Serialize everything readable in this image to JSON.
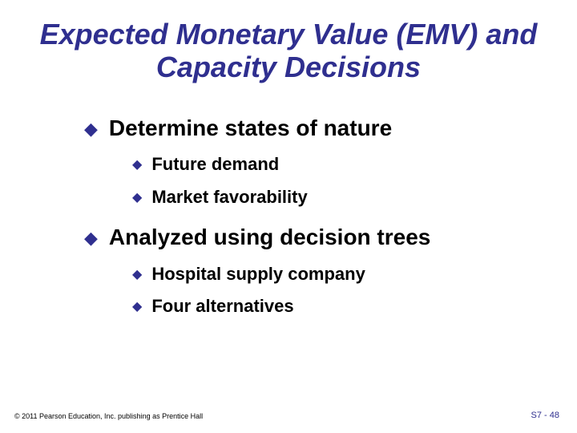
{
  "colors": {
    "accent": "#2f2f8f",
    "text": "#000000",
    "background": "#ffffff"
  },
  "title": "Expected Monetary Value (EMV) and Capacity Decisions",
  "bullets": {
    "b1": "Determine states of nature",
    "b1a": "Future demand",
    "b1b": "Market favorability",
    "b2": "Analyzed using decision trees",
    "b2a": "Hospital supply company",
    "b2b": "Four alternatives"
  },
  "footer": {
    "copyright": "© 2011 Pearson Education, Inc. publishing as Prentice Hall",
    "pagenum": "S7 - 48"
  },
  "glyphs": {
    "diamond": "◆"
  },
  "typography": {
    "title_fontsize": 36,
    "title_style": "bold italic",
    "l1_fontsize": 28,
    "l2_fontsize": 22,
    "footer_left_fontsize": 9,
    "footer_right_fontsize": 11,
    "font_family": "Arial"
  }
}
